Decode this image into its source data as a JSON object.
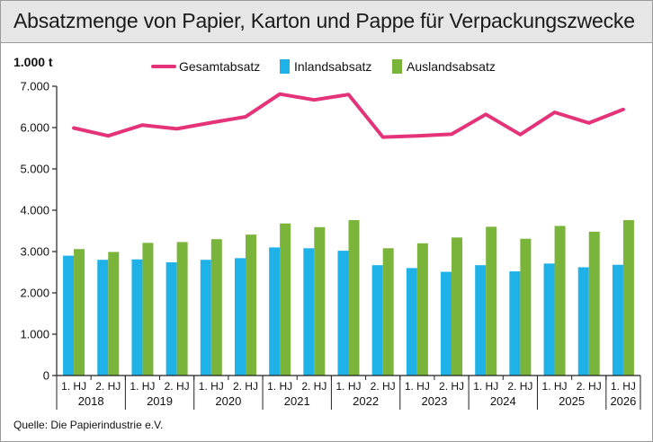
{
  "title": "Absatzmenge von Papier, Karton und Pappe für Verpackungszwecke",
  "unit_label": "1.000 t",
  "source": "Quelle: Die Papierindustrie e.V.",
  "colors": {
    "gesamt": "#e5337a",
    "inland": "#1fb2e8",
    "ausland": "#7ab43a",
    "axis": "#222222",
    "title_bg": "#e6e6e6"
  },
  "chart_data": {
    "type": "bar",
    "categories": [
      "1. HJ",
      "2. HJ",
      "1. HJ",
      "2. HJ",
      "1. HJ",
      "2. HJ",
      "1. HJ",
      "2. HJ",
      "1. HJ",
      "2. HJ",
      "1. HJ",
      "2. HJ",
      "1. HJ",
      "2. HJ",
      "1. HJ",
      "2. HJ",
      "1. HJ"
    ],
    "year_groups": [
      {
        "label": "2018",
        "start": 0,
        "end": 1
      },
      {
        "label": "2019",
        "start": 2,
        "end": 3
      },
      {
        "label": "2020",
        "start": 4,
        "end": 5
      },
      {
        "label": "2021",
        "start": 6,
        "end": 7
      },
      {
        "label": "2022",
        "start": 8,
        "end": 9
      },
      {
        "label": "2023",
        "start": 10,
        "end": 11
      },
      {
        "label": "2024",
        "start": 12,
        "end": 13
      },
      {
        "label": "2025",
        "start": 14,
        "end": 15
      },
      {
        "label": "2026",
        "start": 16,
        "end": 16
      }
    ],
    "series": [
      {
        "name": "Gesamtabsatz",
        "kind": "line",
        "values": [
          5990,
          5800,
          6060,
          5970,
          6120,
          6260,
          6810,
          6670,
          6800,
          5770,
          5800,
          5840,
          6320,
          5830,
          6370,
          6110,
          6440
        ]
      },
      {
        "name": "Inlandsabsatz",
        "kind": "bar",
        "values": [
          2900,
          2800,
          2810,
          2740,
          2800,
          2840,
          3100,
          3080,
          3020,
          2670,
          2600,
          2510,
          2670,
          2520,
          2710,
          2620,
          2680
        ]
      },
      {
        "name": "Auslandsabsatz",
        "kind": "bar",
        "values": [
          3060,
          2990,
          3210,
          3230,
          3300,
          3410,
          3680,
          3590,
          3760,
          3080,
          3200,
          3340,
          3600,
          3310,
          3620,
          3480,
          3760
        ]
      }
    ],
    "ylim": [
      0,
      7000
    ],
    "yticks": [
      "0",
      "1.000",
      "2.000",
      "3.000",
      "4.000",
      "5.000",
      "6.000",
      "7.000"
    ],
    "ytick_values": [
      0,
      1000,
      2000,
      3000,
      4000,
      5000,
      6000,
      7000
    ],
    "grid": false,
    "legend_position": "top"
  }
}
